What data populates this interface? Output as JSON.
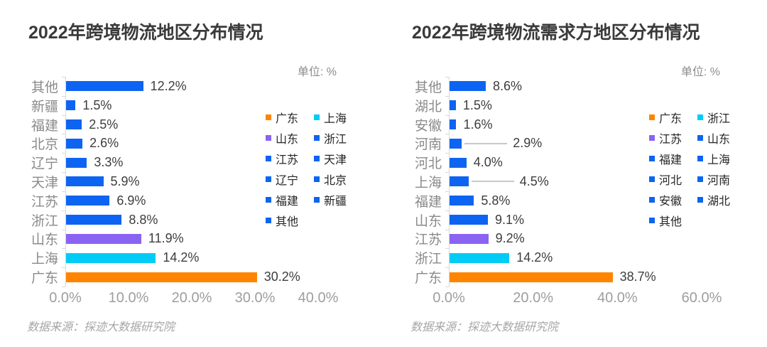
{
  "colors": {
    "bar_blue": "#0D64F2",
    "bar_orange": "#FF8400",
    "bar_purple": "#8A63F3",
    "bar_cyan": "#00CCF7",
    "axis_line": "#D9D9D9",
    "leader_line": "#C9C9C9"
  },
  "chart_data": [
    {
      "type": "bar",
      "orientation": "horizontal",
      "title": "2022年跨境物流地区分布情况",
      "unit_label": "单位: %",
      "source": "数据来源：探迹大数据研究院",
      "categories": [
        "其他",
        "新疆",
        "福建",
        "北京",
        "辽宁",
        "天津",
        "江苏",
        "浙江",
        "山东",
        "上海",
        "广东"
      ],
      "values": [
        12.2,
        1.5,
        2.5,
        2.6,
        3.3,
        5.9,
        6.9,
        8.8,
        11.9,
        14.2,
        30.2
      ],
      "value_labels": [
        "12.2%",
        "1.5%",
        "2.5%",
        "2.6%",
        "3.3%",
        "5.9%",
        "6.9%",
        "8.8%",
        "11.9%",
        "14.2%",
        "30.2%"
      ],
      "bar_colors": [
        "#0D64F2",
        "#0D64F2",
        "#0D64F2",
        "#0D64F2",
        "#0D64F2",
        "#0D64F2",
        "#0D64F2",
        "#0D64F2",
        "#8A63F3",
        "#00CCF7",
        "#FF8400"
      ],
      "leader_lines": [
        false,
        false,
        false,
        false,
        false,
        false,
        false,
        false,
        false,
        false,
        false
      ],
      "xlim": [
        0,
        40
      ],
      "x_ticks": [
        "0.0%",
        "10.0%",
        "20.0%",
        "30.0%",
        "40.0%"
      ],
      "grid": false,
      "legend_position": "right",
      "legend": [
        {
          "label": "广东",
          "color": "#FF8400"
        },
        {
          "label": "上海",
          "color": "#00CCF7"
        },
        {
          "label": "山东",
          "color": "#8A63F3"
        },
        {
          "label": "浙江",
          "color": "#0D64F2"
        },
        {
          "label": "江苏",
          "color": "#0D64F2"
        },
        {
          "label": "天津",
          "color": "#0D64F2"
        },
        {
          "label": "辽宁",
          "color": "#0D64F2"
        },
        {
          "label": "北京",
          "color": "#0D64F2"
        },
        {
          "label": "福建",
          "color": "#0D64F2"
        },
        {
          "label": "新疆",
          "color": "#0D64F2"
        },
        {
          "label": "其他",
          "color": "#0D64F2"
        }
      ]
    },
    {
      "type": "bar",
      "orientation": "horizontal",
      "title": "2022年跨境物流需求方地区分布情况",
      "unit_label": "单位: %",
      "source": "数据来源：探迹大数据研究院",
      "categories": [
        "其他",
        "湖北",
        "安徽",
        "河南",
        "河北",
        "上海",
        "福建",
        "山东",
        "江苏",
        "浙江",
        "广东"
      ],
      "values": [
        8.6,
        1.5,
        1.6,
        2.9,
        4.0,
        4.5,
        5.8,
        9.1,
        9.2,
        14.2,
        38.7
      ],
      "value_labels": [
        "8.6%",
        "1.5%",
        "1.6%",
        "2.9%",
        "4.0%",
        "4.5%",
        "5.8%",
        "9.1%",
        "9.2%",
        "14.2%",
        "38.7%"
      ],
      "bar_colors": [
        "#0D64F2",
        "#0D64F2",
        "#0D64F2",
        "#0D64F2",
        "#0D64F2",
        "#0D64F2",
        "#0D64F2",
        "#0D64F2",
        "#8A63F3",
        "#00CCF7",
        "#FF8400"
      ],
      "leader_lines": [
        false,
        false,
        false,
        true,
        false,
        true,
        false,
        false,
        false,
        false,
        false
      ],
      "xlim": [
        0,
        60
      ],
      "x_ticks": [
        "0.0%",
        "20.0%",
        "40.0%",
        "60.0%"
      ],
      "grid": false,
      "legend_position": "right",
      "legend": [
        {
          "label": "广东",
          "color": "#FF8400"
        },
        {
          "label": "浙江",
          "color": "#00CCF7"
        },
        {
          "label": "江苏",
          "color": "#8A63F3"
        },
        {
          "label": "山东",
          "color": "#0D64F2"
        },
        {
          "label": "福建",
          "color": "#0D64F2"
        },
        {
          "label": "上海",
          "color": "#0D64F2"
        },
        {
          "label": "河北",
          "color": "#0D64F2"
        },
        {
          "label": "河南",
          "color": "#0D64F2"
        },
        {
          "label": "安徽",
          "color": "#0D64F2"
        },
        {
          "label": "湖北",
          "color": "#0D64F2"
        },
        {
          "label": "其他",
          "color": "#0D64F2"
        }
      ]
    }
  ]
}
